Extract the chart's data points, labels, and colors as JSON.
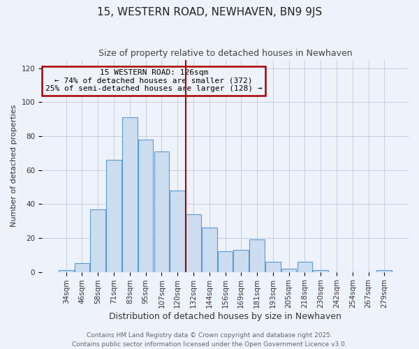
{
  "title": "15, WESTERN ROAD, NEWHAVEN, BN9 9JS",
  "subtitle": "Size of property relative to detached houses in Newhaven",
  "xlabel": "Distribution of detached houses by size in Newhaven",
  "ylabel": "Number of detached properties",
  "bar_labels": [
    "34sqm",
    "46sqm",
    "58sqm",
    "71sqm",
    "83sqm",
    "95sqm",
    "107sqm",
    "120sqm",
    "132sqm",
    "144sqm",
    "156sqm",
    "169sqm",
    "181sqm",
    "193sqm",
    "205sqm",
    "218sqm",
    "230sqm",
    "242sqm",
    "254sqm",
    "267sqm",
    "279sqm"
  ],
  "bar_values": [
    1,
    5,
    37,
    66,
    91,
    78,
    71,
    48,
    34,
    26,
    12,
    13,
    19,
    6,
    2,
    6,
    1,
    0,
    0,
    0,
    1
  ],
  "bar_color": "#ccddf0",
  "bar_edge_color": "#5b9bd5",
  "ylim": [
    0,
    125
  ],
  "yticks": [
    0,
    20,
    40,
    60,
    80,
    100,
    120
  ],
  "vline_x_index": 7.5,
  "vline_color": "#aa0000",
  "annotation_title": "15 WESTERN ROAD: 126sqm",
  "annotation_line1": "← 74% of detached houses are smaller (372)",
  "annotation_line2": "25% of semi-detached houses are larger (128) →",
  "annotation_box_edgecolor": "#aa0000",
  "background_color": "#eef2fa",
  "grid_color": "#c0c8e0",
  "footer1": "Contains HM Land Registry data © Crown copyright and database right 2025.",
  "footer2": "Contains public sector information licensed under the Open Government Licence v3.0.",
  "title_fontsize": 11,
  "subtitle_fontsize": 9,
  "xlabel_fontsize": 9,
  "ylabel_fontsize": 8,
  "tick_fontsize": 7.5,
  "footer_fontsize": 6.5,
  "annot_fontsize": 8
}
